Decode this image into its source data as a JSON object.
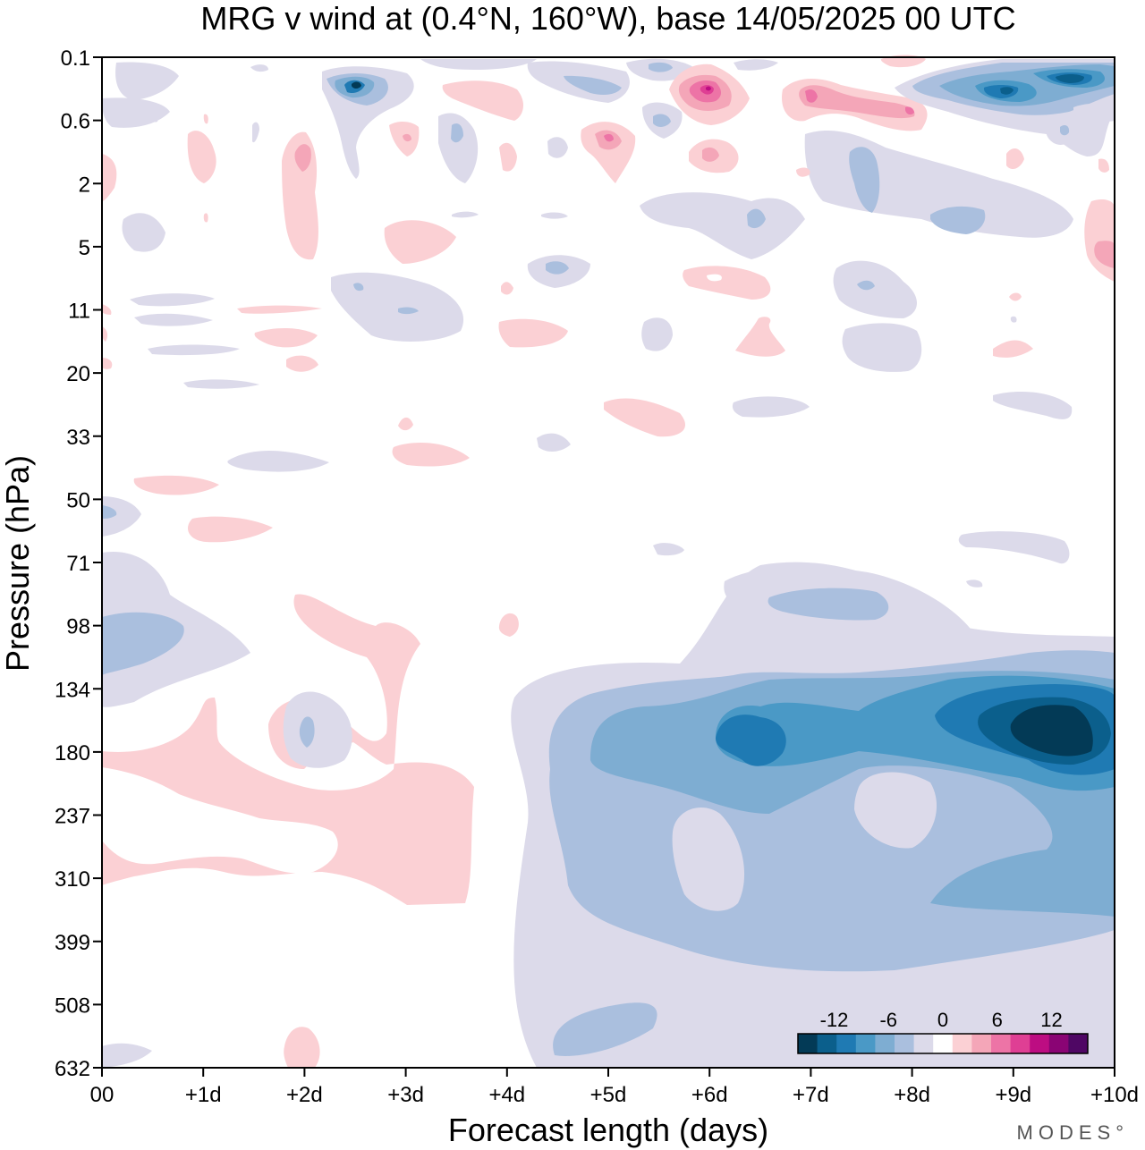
{
  "chart_data": {
    "type": "heatmap",
    "title": "MRG v wind at (0.4°N, 160°W),  base 14/05/2025  00 UTC",
    "xlabel": "Forecast length (days)",
    "ylabel": "Pressure (hPa)",
    "x_ticks": [
      "00",
      "+1d",
      "+2d",
      "+3d",
      "+4d",
      "+5d",
      "+6d",
      "+7d",
      "+8d",
      "+9d",
      "+10d"
    ],
    "x_range_days": [
      0,
      10
    ],
    "y_ticks": [
      "0.1",
      "0.6",
      "2",
      "5",
      "11",
      "20",
      "33",
      "50",
      "71",
      "98",
      "134",
      "180",
      "237",
      "310",
      "399",
      "508",
      "632"
    ],
    "y_scale": "log pressure, top 0.1 hPa, bottom 632 hPa",
    "colorbar": {
      "tick_labels": [
        "-12",
        "-6",
        "0",
        "6",
        "12"
      ],
      "tick_values": [
        -12,
        -6,
        0,
        6,
        12
      ],
      "levels": [
        -16,
        -14,
        -12,
        -10,
        -8,
        -6,
        -4,
        -2,
        2,
        4,
        6,
        8,
        10,
        12,
        14,
        16
      ],
      "colors": [
        "#033a56",
        "#0b5f8c",
        "#1f7ab3",
        "#4a99c6",
        "#7eadd2",
        "#aabfde",
        "#dcdaea",
        "#ffffff",
        "#fbd0d4",
        "#f4a6b8",
        "#ed74a6",
        "#df3f94",
        "#bd0d82",
        "#8a0474",
        "#4f0764"
      ],
      "placement": "bottom-right inside plot"
    },
    "regions": [
      {
        "days": [
          5,
          10
        ],
        "hPa": [
          120,
          600
        ],
        "sign": "negative",
        "min_value": -15,
        "note": "easterly-phase blue lobe, strongest near +9.5d, 180 hPa"
      },
      {
        "days": [
          0,
          3.6
        ],
        "hPa": [
          120,
          360
        ],
        "sign": "positive",
        "max_value": 5,
        "note": "pink lobe, strongest near 00-2d, 237 hPa"
      },
      {
        "days": [
          0,
          1
        ],
        "hPa": [
          60,
          150
        ],
        "sign": "negative",
        "min_value": -4
      },
      {
        "days": [
          2.2,
          2.8
        ],
        "hPa": [
          0.1,
          1
        ],
        "sign": "negative",
        "min_value": -13
      },
      {
        "days": [
          5.6,
          6.4
        ],
        "hPa": [
          0.1,
          0.8
        ],
        "sign": "positive",
        "max_value": 12
      },
      {
        "days": [
          8.5,
          10
        ],
        "hPa": [
          0.1,
          1
        ],
        "sign": "negative",
        "min_value": -15
      }
    ],
    "grid": false,
    "legend": "colorbar bottom-right"
  },
  "branding": "MODES°"
}
